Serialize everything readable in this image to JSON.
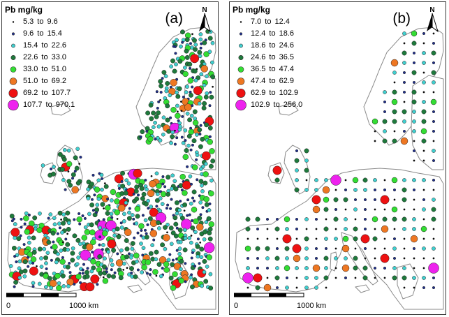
{
  "panels": [
    {
      "id": "a",
      "label": "(a)",
      "legend_title": "Pb mg/kg",
      "north_label": "N",
      "scale_start": "0",
      "scale_end": "1000 km",
      "legend": [
        {
          "from": "5.3",
          "to_word": "to",
          "to": "9.6",
          "color": "#000000",
          "size": 1
        },
        {
          "from": "9.6",
          "to_word": "to",
          "to": "15.4",
          "color": "#1f2f8c",
          "size": 2
        },
        {
          "from": "15.4",
          "to_word": "to",
          "to": "22.6",
          "color": "#40d0d0",
          "size": 3
        },
        {
          "from": "22.6",
          "to_word": "to",
          "to": "33.0",
          "color": "#1e7a3c",
          "size": 4
        },
        {
          "from": "33.0",
          "to_word": "to",
          "to": "51.0",
          "color": "#33dd33",
          "size": 5
        },
        {
          "from": "51.0",
          "to_word": "to",
          "to": "69.2",
          "color": "#ee7722",
          "size": 6
        },
        {
          "from": "69.2",
          "to_word": "to",
          "to": "107.7",
          "color": "#ee1111",
          "size": 7
        },
        {
          "from": "107.7",
          "to_word": "to",
          "to": "970.1",
          "color": "#ee22ee",
          "size": 8
        }
      ]
    },
    {
      "id": "b",
      "label": "(b)",
      "legend_title": "Pb mg/kg",
      "north_label": "N",
      "scale_start": "0",
      "scale_end": "1000 km",
      "legend": [
        {
          "from": "7.0",
          "to_word": "to",
          "to": "12.4",
          "color": "#000000",
          "size": 1
        },
        {
          "from": "12.4",
          "to_word": "to",
          "to": "18.6",
          "color": "#1f2f8c",
          "size": 2
        },
        {
          "from": "18.6",
          "to_word": "to",
          "to": "24.6",
          "color": "#40d0d0",
          "size": 3
        },
        {
          "from": "24.6",
          "to_word": "to",
          "to": "36.5",
          "color": "#1e7a3c",
          "size": 4
        },
        {
          "from": "36.5",
          "to_word": "to",
          "to": "47.4",
          "color": "#33dd33",
          "size": 5
        },
        {
          "from": "47.4",
          "to_word": "to",
          "to": "62.9",
          "color": "#ee7722",
          "size": 6
        },
        {
          "from": "62.9",
          "to_word": "to",
          "to": "102.9",
          "color": "#ee1111",
          "size": 7
        },
        {
          "from": "102.9",
          "to_word": "to",
          "to": "256.0",
          "color": "#ee22ee",
          "size": 8
        }
      ]
    }
  ]
}
